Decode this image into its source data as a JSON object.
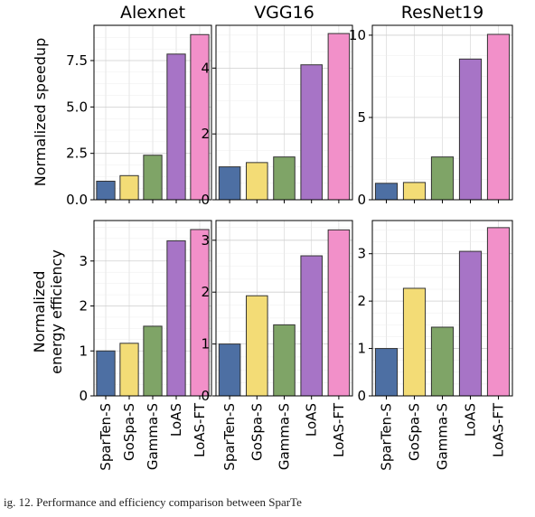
{
  "categories": [
    "SparTen-S",
    "GoSpa-S",
    "Gamma-S",
    "LoAS",
    "LoAS-FT"
  ],
  "colors": [
    "#4d6fa3",
    "#f3dc76",
    "#7fa467",
    "#a774c6",
    "#f290c9"
  ],
  "row_labels": [
    {
      "lines": [
        "Normalized speedup"
      ]
    },
    {
      "lines": [
        "Normalized",
        "energy efficiency"
      ]
    }
  ],
  "caption": "ig. 12.  Performance and efficiency comparison between SparTe",
  "chart_data": [
    {
      "type": "bar",
      "title": "Alexnet",
      "metric": "speedup",
      "categories": [
        "SparTen-S",
        "GoSpa-S",
        "Gamma-S",
        "LoAS",
        "LoAS-FT"
      ],
      "values": [
        1.0,
        1.3,
        2.4,
        7.85,
        8.9
      ],
      "ylim": [
        0,
        9.4
      ],
      "yticks": [
        0.0,
        2.5,
        5.0,
        7.5
      ],
      "ytick_labels": [
        "0.0",
        "2.5",
        "5.0",
        "7.5"
      ],
      "grid": true
    },
    {
      "type": "bar",
      "title": "VGG16",
      "metric": "speedup",
      "categories": [
        "SparTen-S",
        "GoSpa-S",
        "Gamma-S",
        "LoAS",
        "LoAS-FT"
      ],
      "values": [
        1.0,
        1.13,
        1.3,
        4.1,
        5.05
      ],
      "ylim": [
        0,
        5.3
      ],
      "yticks": [
        0,
        2,
        4
      ],
      "ytick_labels": [
        "0",
        "2",
        "4"
      ],
      "grid": true
    },
    {
      "type": "bar",
      "title": "ResNet19",
      "metric": "speedup",
      "categories": [
        "SparTen-S",
        "GoSpa-S",
        "Gamma-S",
        "LoAS",
        "LoAS-FT"
      ],
      "values": [
        1.0,
        1.05,
        2.6,
        8.55,
        10.05
      ],
      "ylim": [
        0,
        10.6
      ],
      "yticks": [
        0,
        5,
        10
      ],
      "ytick_labels": [
        "0",
        "5",
        "10"
      ],
      "grid": true
    },
    {
      "type": "bar",
      "title": "",
      "metric": "energy efficiency",
      "categories": [
        "SparTen-S",
        "GoSpa-S",
        "Gamma-S",
        "LoAS",
        "LoAS-FT"
      ],
      "values": [
        1.0,
        1.17,
        1.55,
        3.45,
        3.7
      ],
      "ylim": [
        0,
        3.9
      ],
      "yticks": [
        0,
        1,
        2,
        3
      ],
      "ytick_labels": [
        "0",
        "1",
        "2",
        "3"
      ],
      "grid": true
    },
    {
      "type": "bar",
      "title": "",
      "metric": "energy efficiency",
      "categories": [
        "SparTen-S",
        "GoSpa-S",
        "Gamma-S",
        "LoAS",
        "LoAS-FT"
      ],
      "values": [
        1.0,
        1.93,
        1.37,
        2.7,
        3.2
      ],
      "ylim": [
        0,
        3.38
      ],
      "yticks": [
        0,
        1,
        2,
        3
      ],
      "ytick_labels": [
        "0",
        "1",
        "2",
        "3"
      ],
      "grid": true
    },
    {
      "type": "bar",
      "title": "",
      "metric": "energy efficiency",
      "categories": [
        "SparTen-S",
        "GoSpa-S",
        "Gamma-S",
        "LoAS",
        "LoAS-FT"
      ],
      "values": [
        1.0,
        2.27,
        1.45,
        3.05,
        3.55
      ],
      "ylim": [
        0,
        3.7
      ],
      "yticks": [
        0,
        1,
        2,
        3
      ],
      "ytick_labels": [
        "0",
        "1",
        "2",
        "3"
      ],
      "grid": true
    }
  ]
}
